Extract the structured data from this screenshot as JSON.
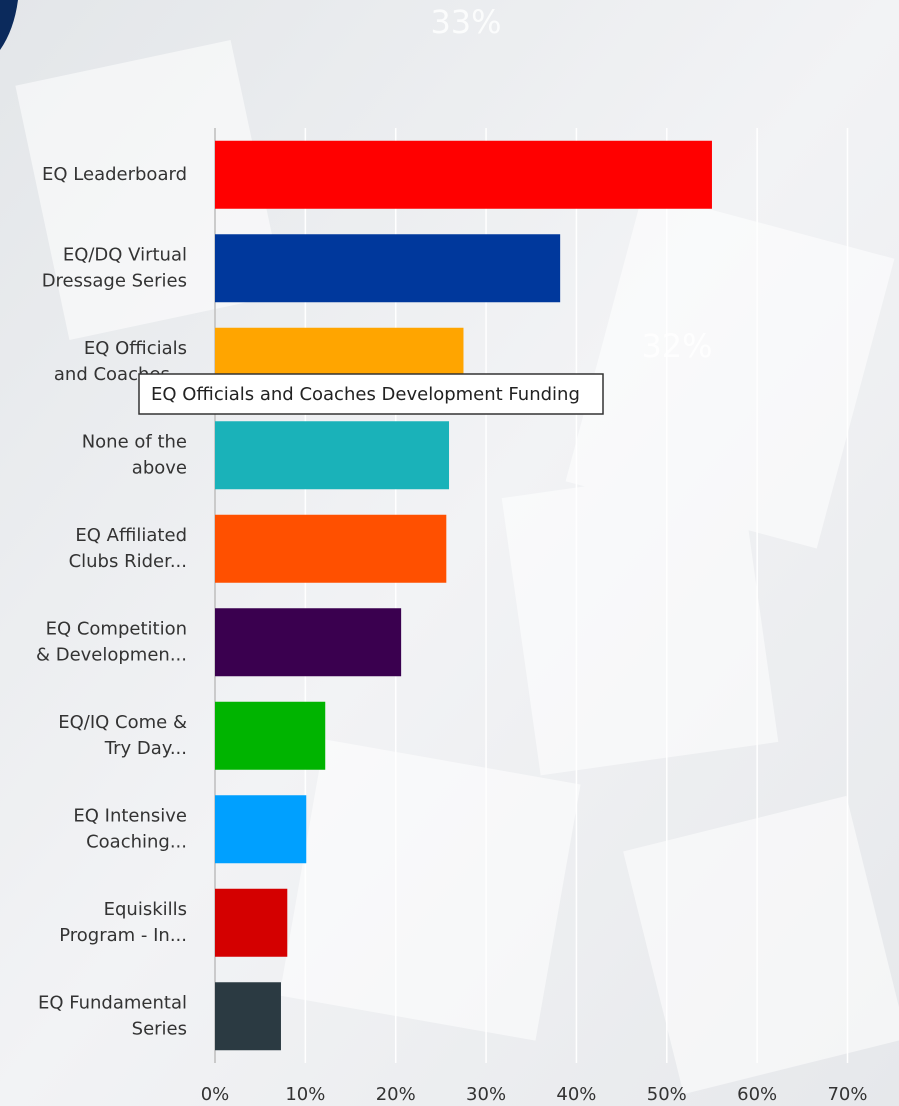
{
  "chart_data": {
    "type": "hbar",
    "categories": [
      [
        "EQ Leaderboard"
      ],
      [
        "EQ/DQ Virtual",
        "Dressage Series"
      ],
      [
        "EQ Officials",
        "and Coaches..."
      ],
      [
        "None of the",
        "above"
      ],
      [
        "EQ Affiliated",
        "Clubs Rider..."
      ],
      [
        "EQ Competition",
        "& Developmen..."
      ],
      [
        "EQ/IQ Come &",
        "Try Day..."
      ],
      [
        "EQ Intensive",
        "Coaching..."
      ],
      [
        "Equiskills",
        "Program - In..."
      ],
      [
        "EQ Fundamental",
        "Series"
      ]
    ],
    "values": [
      55,
      38.2,
      27.5,
      25.9,
      25.6,
      20.6,
      12.2,
      10.1,
      8.0,
      7.3
    ],
    "colors": [
      "#ff0000",
      "#00389c",
      "#ffa500",
      "#1ab2b9",
      "#ff5000",
      "#3a004f",
      "#00b400",
      "#00a0ff",
      "#d40000",
      "#2b3a42"
    ],
    "xlim": [
      0,
      75.7
    ],
    "xticks": [
      {
        "value": 0,
        "label": "0%"
      },
      {
        "value": 10,
        "label": "10%"
      },
      {
        "value": 20,
        "label": "20%"
      },
      {
        "value": 30,
        "label": "30%"
      },
      {
        "value": 40,
        "label": "40%"
      },
      {
        "value": 50,
        "label": "50%"
      },
      {
        "value": 60,
        "label": "60%"
      },
      {
        "value": 70,
        "label": "70%"
      }
    ],
    "grid": true,
    "background_labels": [
      "33%",
      "32%"
    ],
    "tooltip": "EQ Officials and Coaches Development Funding"
  }
}
